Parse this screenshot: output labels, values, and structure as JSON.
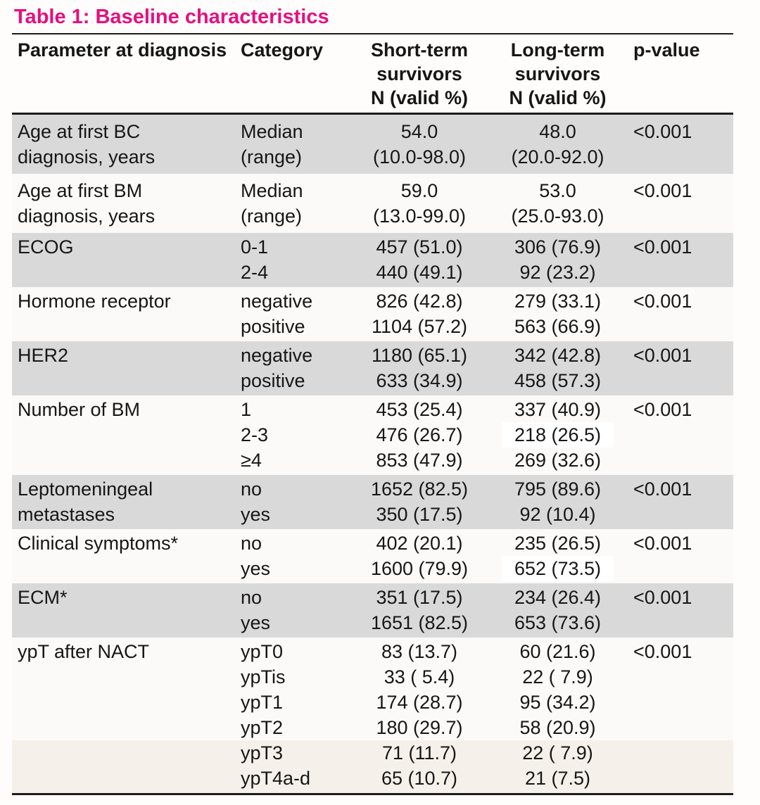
{
  "title": "Table 1: Baseline characteristics",
  "colors": {
    "title_pink": "#e60f7f",
    "shaded_row_gray": "#d9d9d9",
    "plain_row": "#fcfaf8",
    "bottom_tint": "#f5f1ea",
    "highlight_patch": "#ffffff",
    "rule_black": "#1c1c1c"
  },
  "table": {
    "headers": {
      "parameter": "Parameter at diagnosis",
      "category": "Category",
      "short": [
        "Short-term",
        "survivors",
        "N (valid %)"
      ],
      "long": [
        "Long-term",
        "survivors",
        "N (valid %)"
      ],
      "p": "p-value"
    },
    "rows": [
      {
        "parameter": [
          "Age at first BC",
          "diagnosis, years"
        ],
        "shaded": true,
        "tall": true,
        "lines": [
          {
            "category": "Median",
            "short": "54.0",
            "long": "48.0"
          },
          {
            "category": "(range)",
            "short": "(10.0-98.0)",
            "long": "(20.0-92.0)"
          }
        ],
        "p": "<0.001"
      },
      {
        "parameter": [
          "Age at first BM",
          "diagnosis, years"
        ],
        "shaded": false,
        "tall": true,
        "lines": [
          {
            "category": "Median",
            "short": "59.0",
            "long": "53.0"
          },
          {
            "category": "(range)",
            "short": "(13.0-99.0)",
            "long": "(25.0-93.0)"
          }
        ],
        "p": "<0.001"
      },
      {
        "parameter": [
          "ECOG"
        ],
        "shaded": true,
        "lines": [
          {
            "category": "0-1",
            "short": "457 (51.0)",
            "long": "306 (76.9)"
          },
          {
            "category": "2-4",
            "short": "440 (49.1)",
            "long": "92 (23.2)"
          }
        ],
        "p": "<0.001"
      },
      {
        "parameter": [
          "Hormone receptor"
        ],
        "shaded": false,
        "lines": [
          {
            "category": "negative",
            "short": "826 (42.8)",
            "long": "279 (33.1)"
          },
          {
            "category": "positive",
            "short": "1104 (57.2)",
            "long": "563 (66.9)"
          }
        ],
        "p": "<0.001"
      },
      {
        "parameter": [
          "HER2"
        ],
        "shaded": true,
        "lines": [
          {
            "category": "negative",
            "short": "1180 (65.1)",
            "long": "342 (42.8)"
          },
          {
            "category": "positive",
            "short": "633 (34.9)",
            "long": "458 (57.3)"
          }
        ],
        "p": "<0.001"
      },
      {
        "parameter": [
          "Number of BM"
        ],
        "shaded": false,
        "lines": [
          {
            "category": "1",
            "short": "453 (25.4)",
            "long": "337 (40.9)"
          },
          {
            "category": "2-3",
            "short": "476 (26.7)",
            "long": "218 (26.5)",
            "long_highlight": true
          },
          {
            "category": "≥4",
            "short": "853 (47.9)",
            "long": "269 (32.6)"
          }
        ],
        "p": "<0.001"
      },
      {
        "parameter": [
          "Leptomeningeal",
          "metastases"
        ],
        "shaded": true,
        "lines": [
          {
            "category": "no",
            "short": "1652 (82.5)",
            "long": "795 (89.6)"
          },
          {
            "category": "yes",
            "short": "350 (17.5)",
            "long": "92 (10.4)"
          }
        ],
        "p": "<0.001"
      },
      {
        "parameter": [
          "Clinical symptoms*"
        ],
        "shaded": false,
        "lines": [
          {
            "category": "no",
            "short": "402 (20.1)",
            "long": "235 (26.5)"
          },
          {
            "category": "yes",
            "short": "1600 (79.9)",
            "long": "652 (73.5)",
            "long_highlight": true
          }
        ],
        "p": "<0.001"
      },
      {
        "parameter": [
          "ECM*"
        ],
        "shaded": true,
        "lines": [
          {
            "category": "no",
            "short": "351 (17.5)",
            "long": "234 (26.4)"
          },
          {
            "category": "yes",
            "short": "1651 (82.5)",
            "long": "653 (73.6)"
          }
        ],
        "p": "<0.001"
      },
      {
        "parameter": [
          "ypT after NACT"
        ],
        "shaded": false,
        "bottom_tint": true,
        "lines": [
          {
            "category": "ypT0",
            "short": "83 (13.7)",
            "long": "60 (21.6)"
          },
          {
            "category": "ypTis",
            "short": "33 ( 5.4)",
            "long": "22 ( 7.9)"
          },
          {
            "category": "ypT1",
            "short": "174 (28.7)",
            "long": "95 (34.2)"
          },
          {
            "category": "ypT2",
            "short": "180 (29.7)",
            "long": "58 (20.9)"
          },
          {
            "category": "ypT3",
            "short": "71 (11.7)",
            "long": "22 ( 7.9)"
          },
          {
            "category": "ypT4a-d",
            "short": "65 (10.7)",
            "long": "21 (7.5)"
          }
        ],
        "p": "<0.001"
      }
    ]
  }
}
